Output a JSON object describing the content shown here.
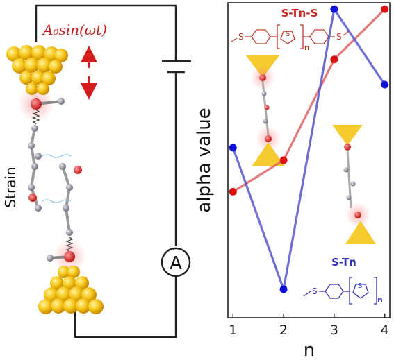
{
  "left_panel": {
    "formula": "A₀sin(ωt)",
    "strain_label": "Strain",
    "ammeter_label": "A"
  },
  "chart_data": {
    "type": "line",
    "x": [
      1,
      2,
      3,
      4
    ],
    "xlabel": "n",
    "ylabel": "alpha value",
    "xlim": [
      0.9,
      4.1
    ],
    "ylim": [
      0,
      1
    ],
    "xticks": [
      "1",
      "2",
      "3",
      "4"
    ],
    "y_tick_labels_shown": false,
    "grid": false,
    "series": [
      {
        "name": "S-Tn-S",
        "color": "#e06060",
        "values": [
          0.4,
          0.5,
          0.82,
          0.98
        ]
      },
      {
        "name": "S-Tn",
        "color": "#5555cc",
        "values": [
          0.54,
          0.09,
          0.98,
          0.74
        ]
      }
    ],
    "annotations": {
      "stns_label": "S-Tn-S",
      "stns_subscript": "n",
      "stn_label": "S-Tn",
      "stn_subscript": "n",
      "atom_label": "S"
    },
    "colors": {
      "red_series": "#e06060",
      "red_marker": "#dd1111",
      "blue_series": "#5555cc",
      "blue_marker": "#1111dd",
      "gold": "#f5c518",
      "label_red": "#cc2222",
      "label_blue": "#3333bb"
    }
  }
}
